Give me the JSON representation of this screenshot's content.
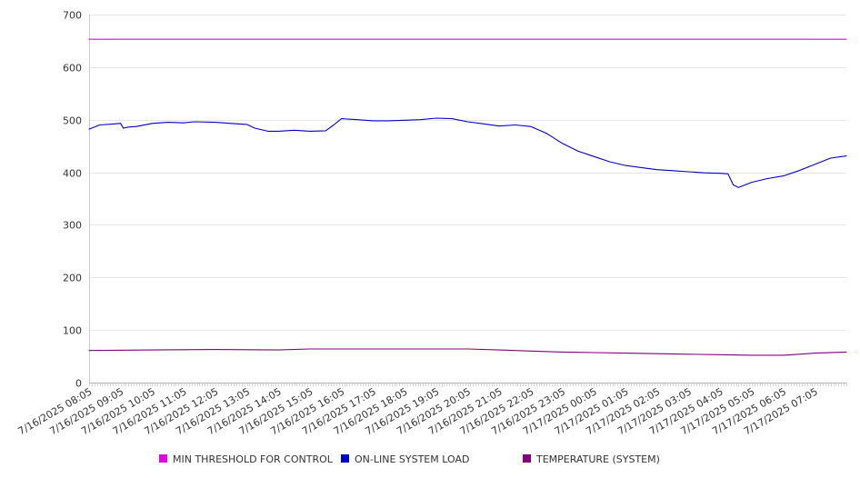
{
  "chart_data": {
    "type": "line",
    "title": "",
    "xlabel": "",
    "ylabel": "",
    "ylim": [
      0,
      700
    ],
    "yticks": [
      0,
      100,
      200,
      300,
      400,
      500,
      600,
      700
    ],
    "grid": true,
    "legend_position": "bottom",
    "x_tick_labels": [
      "7/16/2025 08:05",
      "7/16/2025 09:05",
      "7/16/2025 10:05",
      "7/16/2025 11:05",
      "7/16/2025 12:05",
      "7/16/2025 13:05",
      "7/16/2025 14:05",
      "7/16/2025 15:05",
      "7/16/2025 16:05",
      "7/16/2025 17:05",
      "7/16/2025 18:05",
      "7/16/2025 19:05",
      "7/16/2025 20:05",
      "7/16/2025 21:05",
      "7/16/2025 22:05",
      "7/16/2025 23:05",
      "7/17/2025 00:05",
      "7/17/2025 01:05",
      "7/17/2025 02:05",
      "7/17/2025 03:05",
      "7/17/2025 04:05",
      "7/17/2025 05:05",
      "7/17/2025 06:05",
      "7/17/2025 07:05"
    ],
    "x_range": [
      "7/16/2025 08:05",
      "7/17/2025 08:05"
    ],
    "series": [
      {
        "name": "MIN THRESHOLD FOR CONTROL",
        "color": "#e600e6",
        "x": [
          "7/16/2025 08:05",
          "7/17/2025 08:05"
        ],
        "values": [
          653,
          653
        ]
      },
      {
        "name": "ON-LINE SYSTEM LOAD",
        "color": "#0000cc",
        "x": [
          "7/16/2025 08:05",
          "7/16/2025 08:25",
          "7/16/2025 09:05",
          "7/16/2025 09:10",
          "7/16/2025 09:20",
          "7/16/2025 09:35",
          "7/16/2025 10:05",
          "7/16/2025 10:20",
          "7/16/2025 10:35",
          "7/16/2025 11:05",
          "7/16/2025 11:25",
          "7/16/2025 12:05",
          "7/16/2025 12:35",
          "7/16/2025 13:05",
          "7/16/2025 13:20",
          "7/16/2025 13:45",
          "7/16/2025 14:05",
          "7/16/2025 14:35",
          "7/16/2025 15:05",
          "7/16/2025 15:35",
          "7/16/2025 15:50",
          "7/16/2025 16:05",
          "7/16/2025 16:35",
          "7/16/2025 17:05",
          "7/16/2025 17:35",
          "7/16/2025 18:05",
          "7/16/2025 18:35",
          "7/16/2025 19:05",
          "7/16/2025 19:35",
          "7/16/2025 20:05",
          "7/16/2025 20:35",
          "7/16/2025 21:05",
          "7/16/2025 21:35",
          "7/16/2025 22:05",
          "7/16/2025 22:35",
          "7/16/2025 23:05",
          "7/16/2025 23:35",
          "7/17/2025 00:05",
          "7/17/2025 00:35",
          "7/17/2025 01:05",
          "7/17/2025 01:35",
          "7/17/2025 02:05",
          "7/17/2025 02:35",
          "7/17/2025 03:05",
          "7/17/2025 03:35",
          "7/17/2025 04:05",
          "7/17/2025 04:20",
          "7/17/2025 04:30",
          "7/17/2025 04:40",
          "7/17/2025 05:05",
          "7/17/2025 05:35",
          "7/17/2025 06:05",
          "7/17/2025 06:35",
          "7/17/2025 07:05",
          "7/17/2025 07:35",
          "7/17/2025 08:05"
        ],
        "values": [
          482,
          490,
          493,
          484,
          486,
          487,
          493,
          494,
          495,
          494,
          496,
          495,
          493,
          491,
          484,
          478,
          478,
          480,
          478,
          479,
          490,
          502,
          500,
          498,
          498,
          499,
          500,
          503,
          502,
          496,
          492,
          488,
          490,
          487,
          474,
          455,
          440,
          430,
          420,
          413,
          409,
          405,
          403,
          401,
          399,
          398,
          397,
          376,
          371,
          381,
          388,
          393,
          403,
          415,
          427,
          431
        ]
      },
      {
        "name": "TEMPERATURE (SYSTEM)",
        "color": "#800080",
        "x": [
          "7/16/2025 08:05",
          "7/16/2025 10:05",
          "7/16/2025 12:05",
          "7/16/2025 14:05",
          "7/16/2025 15:05",
          "7/16/2025 17:05",
          "7/16/2025 19:05",
          "7/16/2025 20:05",
          "7/16/2025 21:05",
          "7/16/2025 22:05",
          "7/16/2025 23:05",
          "7/17/2025 00:05",
          "7/17/2025 01:05",
          "7/17/2025 02:05",
          "7/17/2025 03:05",
          "7/17/2025 04:05",
          "7/17/2025 05:05",
          "7/17/2025 06:05",
          "7/17/2025 07:05",
          "7/17/2025 08:05"
        ],
        "values": [
          61,
          62,
          63,
          62,
          64,
          64,
          64,
          64,
          62,
          60,
          58,
          57,
          56,
          55,
          54,
          53,
          52,
          52,
          56,
          58
        ]
      }
    ]
  }
}
